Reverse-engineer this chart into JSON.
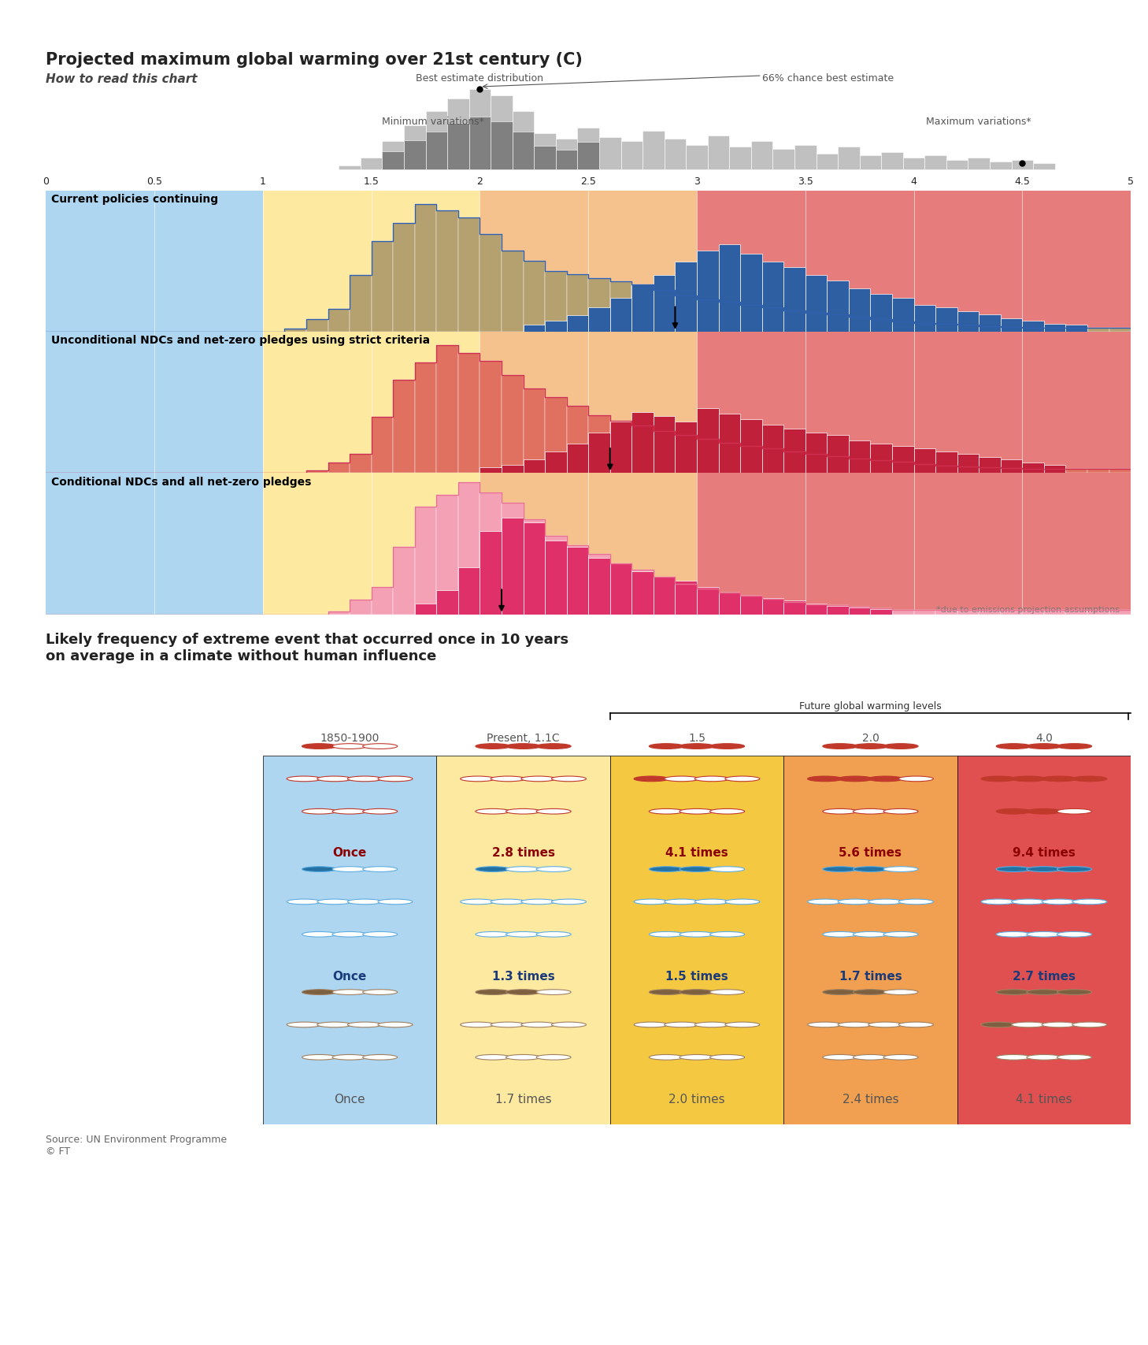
{
  "title": "Projected maximum global warming over 21st century (C)",
  "xmin": 0,
  "xmax": 5.0,
  "xticks": [
    0,
    0.5,
    1.0,
    1.5,
    2.0,
    2.5,
    3.0,
    3.5,
    4.0,
    4.5,
    5.0
  ],
  "bg_blue": "#aed6f1",
  "bg_yellow": "#fdeaa0",
  "bg_orange": "#f0a050",
  "bg_red": "#e05050",
  "scenario1_label": "Current policies continuing",
  "scenario2_label": "Unconditional NDCs and net-zero pledges using strict criteria",
  "scenario3_label": "Conditional NDCs and all net-zero pledges",
  "marker1_x": 2.9,
  "marker2_x": 2.6,
  "marker3_x": 2.1,
  "footnote": "*due to emissions projection assumptions",
  "source": "Source: UN Environment Programme\n© FT",
  "table_title": "Likely frequency of extreme event that occurred once in 10 years\non average in a climate without human influence",
  "table_cols": [
    "1850-1900",
    "Present, 1.1C",
    "1.5",
    "2.0",
    "4.0"
  ],
  "table_col_bg": [
    "#aed6f1",
    "#fdeaa0",
    "#f5c842",
    "#f0a050",
    "#e05050"
  ],
  "future_label": "Future global warming levels",
  "row1_values": [
    "Once",
    "2.8 times",
    "4.1 times",
    "5.6 times",
    "9.4 times"
  ],
  "row2_values": [
    "Once",
    "1.3 times",
    "1.5 times",
    "1.7 times",
    "2.7 times"
  ],
  "row3_values": [
    "Once",
    "1.7 times",
    "2.0 times",
    "2.4 times",
    "4.1 times"
  ],
  "row1_text_color": "#8b0000",
  "row2_text_color": "#1a3a7a",
  "row3_text_color": "#555555",
  "row1_fill_color": "#c0392b",
  "row2_fill_color": "#2471a3",
  "row3_fill_color": "#7d6040",
  "row1_edge_color": "#c0392b",
  "row2_edge_color": "#5dade2",
  "row3_edge_color": "#a08060",
  "s1_outer_fill": "#b5a070",
  "s1_inner_fill": "#2e5fa3",
  "s1_outline": "#3060b0",
  "s2_outer_fill": "#e07060",
  "s2_inner_fill": "#c0203a",
  "s2_outline": "#d03050",
  "s3_outer_fill": "#f4a0b5",
  "s3_inner_fill": "#e0306a",
  "s3_outline": "#e87090",
  "legend_outer_fill": "#c0c0c0",
  "legend_inner_fill": "#808080"
}
